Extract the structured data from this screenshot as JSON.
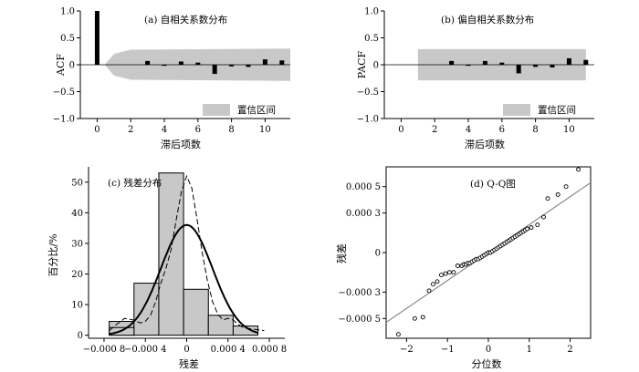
{
  "chart_data": [
    {
      "type": "bar",
      "title": "(a) 自相关系数分布",
      "xlabel": "滞后项数",
      "ylabel": "ACF",
      "legend": {
        "label": "置信区间",
        "position": "bottom-right"
      },
      "xlim": [
        -1,
        11.5
      ],
      "ylim": [
        -1.0,
        1.0
      ],
      "xticks": [
        "0",
        "2",
        "4",
        "6",
        "8",
        "10"
      ],
      "yticks": [
        "-1.0",
        "-0.5",
        "0",
        "0.5",
        "1.0"
      ],
      "lags": [
        0,
        1,
        2,
        3,
        4,
        5,
        6,
        7,
        8,
        9,
        10,
        11
      ],
      "values": [
        1.0,
        0.0,
        0.0,
        0.07,
        -0.02,
        0.06,
        0.04,
        -0.17,
        -0.03,
        -0.04,
        0.1,
        0.08
      ],
      "confidence_band": {
        "x": [
          0.5,
          1.0,
          2.0,
          11.5
        ],
        "upper": [
          0.02,
          0.2,
          0.28,
          0.3
        ],
        "lower": [
          -0.02,
          -0.2,
          -0.28,
          -0.3
        ]
      }
    },
    {
      "type": "bar",
      "title": "(b) 偏自相关系数分布",
      "xlabel": "滞后项数",
      "ylabel": "PACF",
      "legend": {
        "label": "置信区间",
        "position": "bottom-right"
      },
      "xlim": [
        -1,
        11.5
      ],
      "ylim": [
        -1.0,
        1.0
      ],
      "xticks": [
        "0",
        "2",
        "4",
        "6",
        "8",
        "10"
      ],
      "yticks": [
        "-1.0",
        "-0.5",
        "0",
        "0.5",
        "1.0"
      ],
      "lags": [
        1,
        2,
        3,
        4,
        5,
        6,
        7,
        8,
        9,
        10,
        11
      ],
      "values": [
        0.0,
        0.0,
        0.07,
        -0.02,
        0.07,
        0.04,
        -0.16,
        -0.04,
        -0.05,
        0.12,
        0.09
      ],
      "confidence_band": {
        "x": [
          1.0,
          11.0
        ],
        "upper": [
          0.29,
          0.29
        ],
        "lower": [
          -0.29,
          -0.29
        ]
      }
    },
    {
      "type": "bar",
      "title": "(c) 残差分布",
      "xlabel": "残差",
      "ylabel": "百分比/%",
      "xlim": [
        -0.00095,
        0.00095
      ],
      "ylim": [
        -1,
        55
      ],
      "xticks": [
        -0.0008,
        -0.0004,
        0,
        0.0004,
        0.0008
      ],
      "xtick_labels": [
        "−0.000 8",
        "−0.000 4",
        "0",
        "0.000 4",
        "0.000 8"
      ],
      "yticks": [
        0,
        10,
        20,
        30,
        40,
        50
      ],
      "bin_edges": [
        -0.00075,
        -0.00051,
        -0.00027,
        -3e-05,
        0.00021,
        0.00045,
        0.00069
      ],
      "values": [
        4.5,
        17,
        53,
        15,
        6.5,
        3
      ],
      "extra_bars": [
        {
          "x0": -0.00075,
          "x1": -0.00051,
          "value": 2.5
        }
      ],
      "normal_curve": {
        "mean": 0.0,
        "sd": 0.00025,
        "peak": 36
      },
      "kernel_density": {
        "x": [
          -0.00075,
          -0.00068,
          -0.0006,
          -0.00052,
          -0.00045,
          -0.0004,
          -0.00035,
          -0.0003,
          -0.00025,
          -0.0002,
          -0.00015,
          -0.0001,
          -5e-05,
          0.0,
          5e-05,
          0.0001,
          0.00015,
          0.0002,
          0.00025,
          0.0003,
          0.00035,
          0.0004,
          0.00045,
          0.0005,
          0.00055,
          0.0006,
          0.00068,
          0.00075
        ],
        "y": [
          1.5,
          3.5,
          5.5,
          5.0,
          4.0,
          4.5,
          6.5,
          11,
          17,
          22,
          28,
          38,
          47,
          52,
          48,
          38,
          27,
          18,
          11,
          7,
          5,
          5.5,
          5,
          3.5,
          2.5,
          2.2,
          1.8,
          1.5
        ]
      }
    },
    {
      "type": "scatter",
      "title": "(d) Q-Q图",
      "xlabel": "分位数",
      "ylabel": "残差",
      "xlim": [
        -2.5,
        2.5
      ],
      "ylim": [
        -0.00065,
        0.00065
      ],
      "xticks": [
        -2,
        -1,
        0,
        1,
        2
      ],
      "xtick_labels": [
        "−2",
        "−1",
        "0",
        "1",
        "2"
      ],
      "yticks": [
        -0.0005,
        -0.0003,
        0,
        0.0003,
        0.0005
      ],
      "ytick_labels": [
        "−0.000 5",
        "−0.000 3",
        "0",
        "0.000 3",
        "0.000 5"
      ],
      "reference_line": {
        "x": [
          -2.5,
          2.5
        ],
        "y": [
          -0.00053,
          0.00053
        ]
      },
      "points": {
        "x": [
          -2.2,
          -1.8,
          -1.6,
          -1.45,
          -1.35,
          -1.25,
          -1.15,
          -1.05,
          -0.95,
          -0.85,
          -0.75,
          -0.65,
          -0.6,
          -0.55,
          -0.5,
          -0.45,
          -0.4,
          -0.35,
          -0.3,
          -0.25,
          -0.2,
          -0.15,
          -0.1,
          -0.05,
          0.0,
          0.05,
          0.1,
          0.15,
          0.2,
          0.25,
          0.3,
          0.35,
          0.4,
          0.45,
          0.5,
          0.55,
          0.6,
          0.65,
          0.7,
          0.75,
          0.8,
          0.85,
          0.9,
          0.95,
          1.05,
          1.2,
          1.35,
          1.45,
          1.7,
          1.9,
          2.2
        ],
        "y": [
          -0.00062,
          -0.0005,
          -0.00049,
          -0.00029,
          -0.00024,
          -0.00022,
          -0.00017,
          -0.00016,
          -0.00015,
          -0.00015,
          -0.0001,
          -0.0001,
          -9e-05,
          -9e-05,
          -8e-05,
          -8e-05,
          -7e-05,
          -6e-05,
          -5e-05,
          -5e-05,
          -4e-05,
          -3e-05,
          -2e-05,
          -1e-05,
          0.0,
          0.0,
          1e-05,
          2e-05,
          3e-05,
          4e-05,
          5e-05,
          6e-05,
          7e-05,
          8e-05,
          9e-05,
          0.0001,
          0.00011,
          0.00012,
          0.00013,
          0.00014,
          0.00015,
          0.00016,
          0.00017,
          0.00018,
          0.00019,
          0.00021,
          0.00027,
          0.00041,
          0.00044,
          0.0005,
          0.00063
        ]
      }
    }
  ]
}
